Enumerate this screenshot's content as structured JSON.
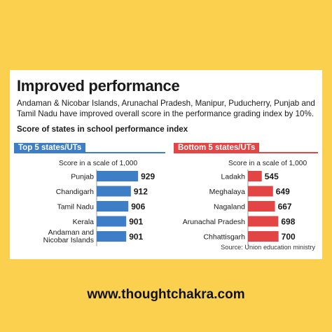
{
  "card": {
    "title": "Improved performance",
    "subtitle": "Andaman & Nicobar Islands, Arunachal Pradesh, Manipur, Puducherry, Punjab and Tamil Nadu have improved overall score in the performance grading index by 10%.",
    "chart_heading": "Score of states in school performance index",
    "source": "Source: Union education ministry"
  },
  "footer": {
    "url": "www.thoughtchakra.com"
  },
  "chart_data": [
    {
      "type": "bar",
      "orientation": "horizontal",
      "title": "Top 5 states/UTs",
      "xlabel": "Score in a scale of 1,000",
      "color": "#3d7ec6",
      "categories": [
        "Punjab",
        "Chandigarh",
        "Tamil Nadu",
        "Kerala",
        "Andaman and Nicobar Islands"
      ],
      "values": [
        929,
        912,
        906,
        901,
        901
      ],
      "xlim": [
        0,
        1000
      ]
    },
    {
      "type": "bar",
      "orientation": "horizontal",
      "title": "Bottom 5 states/UTs",
      "xlabel": "Score in a scale of 1,000",
      "color": "#e34545",
      "categories": [
        "Ladakh",
        "Meghalaya",
        "Nagaland",
        "Arunachal Pradesh",
        "Chhattisgarh"
      ],
      "values": [
        545,
        649,
        667,
        698,
        700
      ],
      "xlim": [
        0,
        1000
      ]
    }
  ]
}
